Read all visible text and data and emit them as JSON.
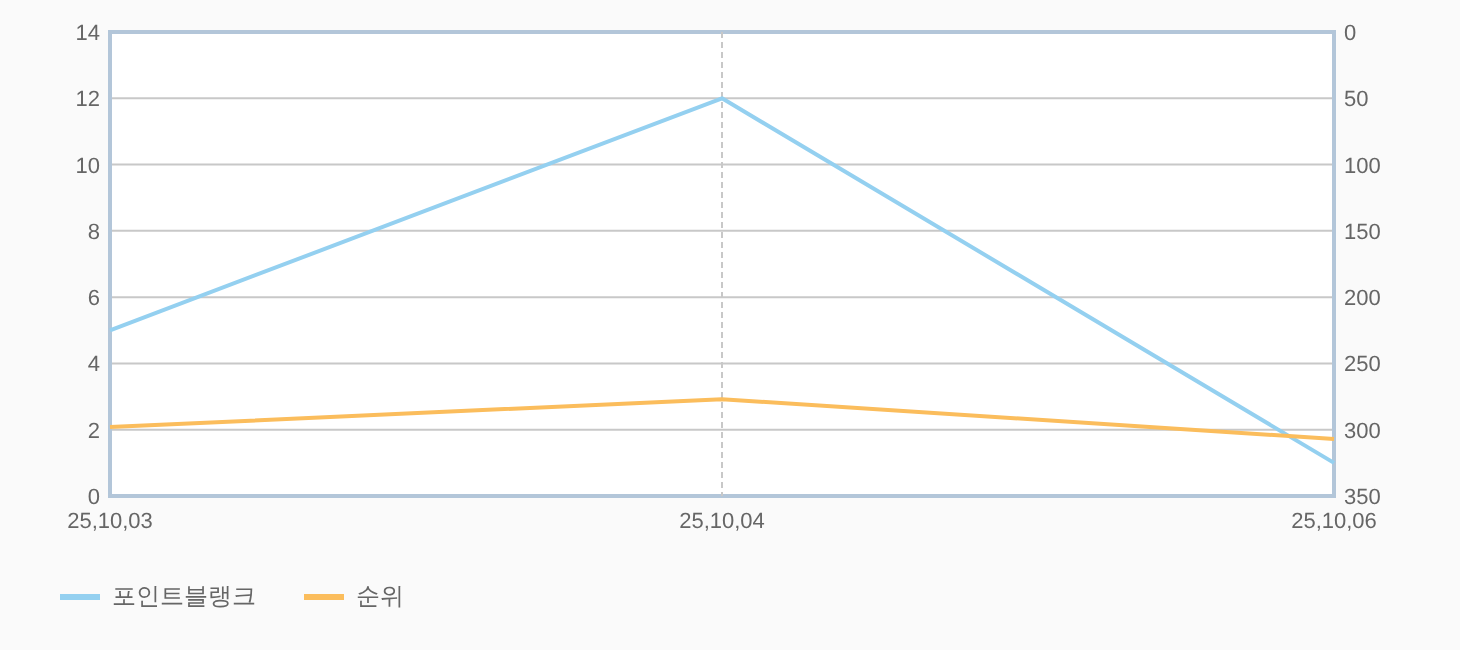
{
  "chart_data": {
    "type": "line",
    "categories": [
      "25,10,03",
      "25,10,04",
      "25,10,06"
    ],
    "series": [
      {
        "name": "포인트블랭크",
        "color": "#94d0f0",
        "values": [
          5,
          12,
          1
        ]
      },
      {
        "name": "순위",
        "color": "#fbbd5c",
        "values": [
          298,
          277,
          307
        ],
        "axis": "y2"
      }
    ],
    "ylim": [
      0,
      14
    ],
    "yticks": [
      0,
      2,
      4,
      6,
      8,
      10,
      12,
      14
    ],
    "y2lim": [
      350,
      0
    ],
    "y2ticks": [
      0,
      50,
      100,
      150,
      200,
      250,
      300,
      350
    ],
    "ref_lines": [
      {
        "axis": "x",
        "value": "25,10,04",
        "color": "#c8c8c8",
        "line_style": "dashed"
      }
    ],
    "grid": "y",
    "legend": "bottom left"
  }
}
